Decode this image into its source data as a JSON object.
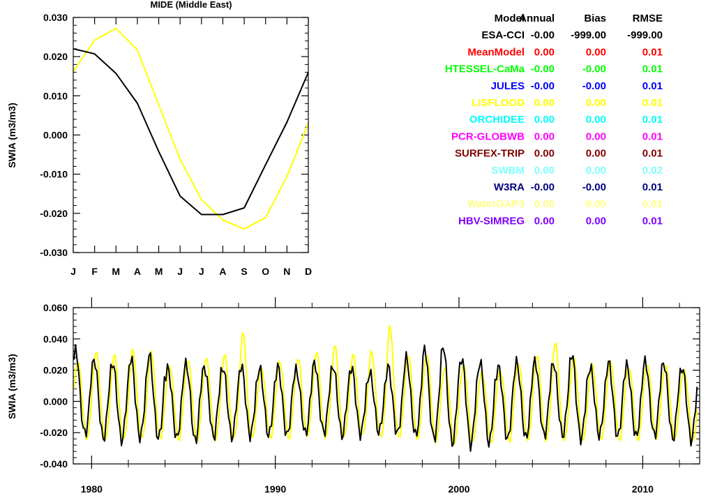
{
  "chart_data": [
    {
      "type": "line",
      "title": "MIDE (Middle East)",
      "ylabel": "SWIA (m3/m3)",
      "ylim": [
        -0.03,
        0.03
      ],
      "yticks": [
        "0.030",
        "0.020",
        "0.010",
        "0.000",
        "-0.010",
        "-0.020",
        "-0.030"
      ],
      "categories": [
        "J",
        "F",
        "M",
        "A",
        "M",
        "J",
        "J",
        "A",
        "S",
        "O",
        "N",
        "D"
      ],
      "series": [
        {
          "color": "#ffff00",
          "values": [
            0.0162,
            0.0242,
            0.0272,
            0.0217,
            0.0077,
            -0.0062,
            -0.0165,
            -0.0217,
            -0.024,
            -0.0211,
            -0.0106,
            0.003
          ]
        },
        {
          "color": "#000000",
          "values": [
            0.022,
            0.0207,
            0.0157,
            0.0081,
            -0.0042,
            -0.0156,
            -0.0203,
            -0.0203,
            -0.0186,
            -0.0076,
            0.0033,
            0.016
          ]
        }
      ]
    },
    {
      "type": "line",
      "ylabel": "SWIA (m3/m3)",
      "ylim": [
        -0.04,
        0.06
      ],
      "yticks": [
        "0.060",
        "0.040",
        "0.020",
        "0.000",
        "-0.020",
        "-0.040"
      ],
      "xlim": [
        1979.0,
        2013.1
      ],
      "xticks": [
        "1980",
        "1990",
        "2000",
        "2010"
      ],
      "xtick_values": [
        1980,
        1990,
        2000,
        2010
      ],
      "years": [
        1979,
        1980,
        1981,
        1982,
        1983,
        1984,
        1985,
        1986,
        1987,
        1988,
        1989,
        1990,
        1991,
        1992,
        1993,
        1994,
        1995,
        1996,
        1997,
        1998,
        1999,
        2000,
        2001,
        2002,
        2003,
        2004,
        2005,
        2006,
        2007,
        2008,
        2009,
        2010,
        2011,
        2012
      ],
      "black_peaks": [
        0.033,
        0.027,
        0.025,
        0.028,
        0.03,
        0.021,
        0.024,
        0.022,
        0.022,
        0.023,
        0.021,
        0.022,
        0.02,
        0.025,
        0.023,
        0.022,
        0.018,
        0.022,
        0.028,
        0.034,
        0.036,
        0.028,
        0.025,
        0.022,
        0.025,
        0.026,
        0.025,
        0.031,
        0.022,
        0.025,
        0.023,
        0.026,
        0.025,
        0.022
      ],
      "black_troughs": [
        -0.021,
        -0.024,
        -0.025,
        -0.023,
        -0.024,
        -0.024,
        -0.026,
        -0.023,
        -0.023,
        -0.022,
        -0.022,
        -0.022,
        -0.021,
        -0.02,
        -0.022,
        -0.021,
        -0.02,
        -0.021,
        -0.022,
        -0.024,
        -0.027,
        -0.028,
        -0.027,
        -0.025,
        -0.024,
        -0.022,
        -0.022,
        -0.024,
        -0.022,
        -0.023,
        -0.023,
        -0.022,
        -0.024,
        -0.025
      ],
      "yellow_peaks": [
        0.026,
        0.032,
        0.03,
        0.033,
        0.032,
        0.023,
        0.027,
        0.028,
        0.03,
        0.044,
        0.022,
        0.026,
        0.028,
        0.032,
        0.036,
        0.03,
        0.032,
        0.049,
        0.03,
        0.03,
        0.022,
        0.023,
        0.018,
        0.02,
        0.025,
        0.03,
        0.038,
        0.028,
        0.024,
        0.026,
        0.022,
        0.024,
        0.023,
        0.02
      ],
      "yellow_troughs": [
        -0.024,
        -0.025,
        -0.025,
        -0.024,
        -0.024,
        -0.025,
        -0.026,
        -0.025,
        -0.024,
        -0.024,
        -0.024,
        -0.024,
        -0.022,
        -0.023,
        -0.023,
        -0.022,
        -0.023,
        -0.023,
        -0.024,
        -0.026,
        -0.028,
        -0.027,
        -0.027,
        -0.026,
        -0.025,
        -0.025,
        -0.025,
        -0.026,
        -0.025,
        -0.025,
        -0.025,
        -0.024,
        -0.025,
        -0.026
      ],
      "series": [
        {
          "color": "#ffff00"
        },
        {
          "color": "#000000"
        }
      ]
    }
  ],
  "stats_table": {
    "headers": [
      "Model",
      "Annual",
      "Bias",
      "RMSE"
    ],
    "rows": [
      {
        "model": "ESA-CCI",
        "annual": "-0.00",
        "bias": "-999.00",
        "rmse": "-999.00",
        "color": "#000000"
      },
      {
        "model": "MeanModel",
        "annual": "0.00",
        "bias": "0.00",
        "rmse": "0.01",
        "color": "#ff0000"
      },
      {
        "model": "HTESSEL-CaMa",
        "annual": "-0.00",
        "bias": "-0.00",
        "rmse": "0.01",
        "color": "#00ff00"
      },
      {
        "model": "JULES",
        "annual": "-0.00",
        "bias": "-0.00",
        "rmse": "0.01",
        "color": "#0000ff"
      },
      {
        "model": "LISFLOOD",
        "annual": "0.00",
        "bias": "0.00",
        "rmse": "0.01",
        "color": "#ffff00"
      },
      {
        "model": "ORCHIDEE",
        "annual": "0.00",
        "bias": "0.00",
        "rmse": "0.01",
        "color": "#00ffff"
      },
      {
        "model": "PCR-GLOBWB",
        "annual": "0.00",
        "bias": "0.00",
        "rmse": "0.01",
        "color": "#ff00ff"
      },
      {
        "model": "SURFEX-TRIP",
        "annual": "0.00",
        "bias": "0.00",
        "rmse": "0.01",
        "color": "#800000"
      },
      {
        "model": "SWBM",
        "annual": "0.00",
        "bias": "0.00",
        "rmse": "0.02",
        "color": "#80ffff"
      },
      {
        "model": "W3RA",
        "annual": "-0.00",
        "bias": "-0.00",
        "rmse": "0.01",
        "color": "#000080"
      },
      {
        "model": "WaterGAP3",
        "annual": "0.00",
        "bias": "0.00",
        "rmse": "0.01",
        "color": "#ffff80"
      },
      {
        "model": "HBV-SIMREG",
        "annual": "0.00",
        "bias": "0.00",
        "rmse": "0.01",
        "color": "#8000ff"
      }
    ]
  }
}
